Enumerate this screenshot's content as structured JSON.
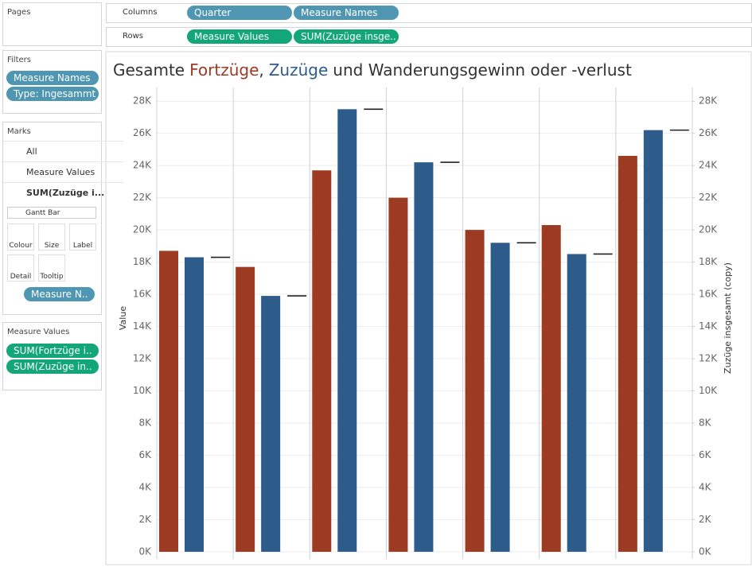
{
  "ui": {
    "pages": "Pages",
    "shelves": {
      "columns": {
        "label": "Columns",
        "pills": [
          "Quarter",
          "Measure Names"
        ]
      },
      "rows": {
        "label": "Rows",
        "pills": [
          "Measure Values",
          "SUM(Zuzüge insge.."
        ]
      }
    },
    "filters": {
      "title": "Filters",
      "pills": [
        "Measure Names",
        "Type: Ingesammt"
      ]
    },
    "marks": {
      "title": "Marks",
      "items": [
        "All",
        "Measure Values",
        "SUM(Zuzüge i..."
      ],
      "mark_type": "Gantt Bar",
      "buttons": [
        "Colour",
        "Size",
        "Label",
        "Detail",
        "Tooltip"
      ],
      "color_pill": "Measure N.."
    },
    "measure_values": {
      "title": "Measure Values",
      "pills": [
        "SUM(Fortzüge i..",
        "SUM(Zuzüge in.."
      ]
    }
  },
  "chart_data": {
    "type": "bar",
    "title_start": "Gesamte",
    "title_separator": ",",
    "title_end": "und Wanderungsgewinn oder -verlust",
    "categories": [
      null,
      null,
      null,
      null,
      null,
      null,
      null
    ],
    "series": [
      {
        "name": "Fortzüge",
        "color": "#9c3b22",
        "values": [
          18700,
          17700,
          23700,
          22000,
          20000,
          20300,
          24600
        ]
      },
      {
        "name": "Zuzüge",
        "color": "#2d5b8a",
        "values": [
          18300,
          15900,
          27500,
          24200,
          19200,
          18500,
          26200
        ]
      },
      {
        "name": "Zuzüge insgesamt (copy)",
        "color": "#222222",
        "axis": "y2",
        "values": [
          18300,
          15900,
          27500,
          24200,
          19200,
          18500,
          26200
        ]
      }
    ],
    "ylabel": "Value",
    "y2label": "Zuzüge insgesamt (copy)",
    "ylim": [
      -450,
      28850
    ],
    "y2lim": [
      -450,
      28850
    ],
    "yticks": [
      {
        "value": 0,
        "label": "0K"
      },
      {
        "value": 2000,
        "label": "2K"
      },
      {
        "value": 4000,
        "label": "4K"
      },
      {
        "value": 6000,
        "label": "6K"
      },
      {
        "value": 8000,
        "label": "8K"
      },
      {
        "value": 10000,
        "label": "10K"
      },
      {
        "value": 12000,
        "label": "12K"
      },
      {
        "value": 14000,
        "label": "14K"
      },
      {
        "value": 16000,
        "label": "16K"
      },
      {
        "value": 18000,
        "label": "18K"
      },
      {
        "value": 20000,
        "label": "20K"
      },
      {
        "value": 22000,
        "label": "22K"
      },
      {
        "value": 24000,
        "label": "24K"
      },
      {
        "value": 26000,
        "label": "26K"
      },
      {
        "value": 28000,
        "label": "28K"
      }
    ],
    "y2ticks": [
      {
        "value": 0,
        "label": "0K"
      },
      {
        "value": 2000,
        "label": "2K"
      },
      {
        "value": 4000,
        "label": "4K"
      },
      {
        "value": 6000,
        "label": "6K"
      },
      {
        "value": 8000,
        "label": "8K"
      },
      {
        "value": 10000,
        "label": "10K"
      },
      {
        "value": 12000,
        "label": "12K"
      },
      {
        "value": 14000,
        "label": "14K"
      },
      {
        "value": 16000,
        "label": "16K"
      },
      {
        "value": 18000,
        "label": "18K"
      },
      {
        "value": 20000,
        "label": "20K"
      },
      {
        "value": 22000,
        "label": "22K"
      },
      {
        "value": 24000,
        "label": "24K"
      },
      {
        "value": 26000,
        "label": "26K"
      },
      {
        "value": 28000,
        "label": "28K"
      }
    ],
    "grid": true
  }
}
